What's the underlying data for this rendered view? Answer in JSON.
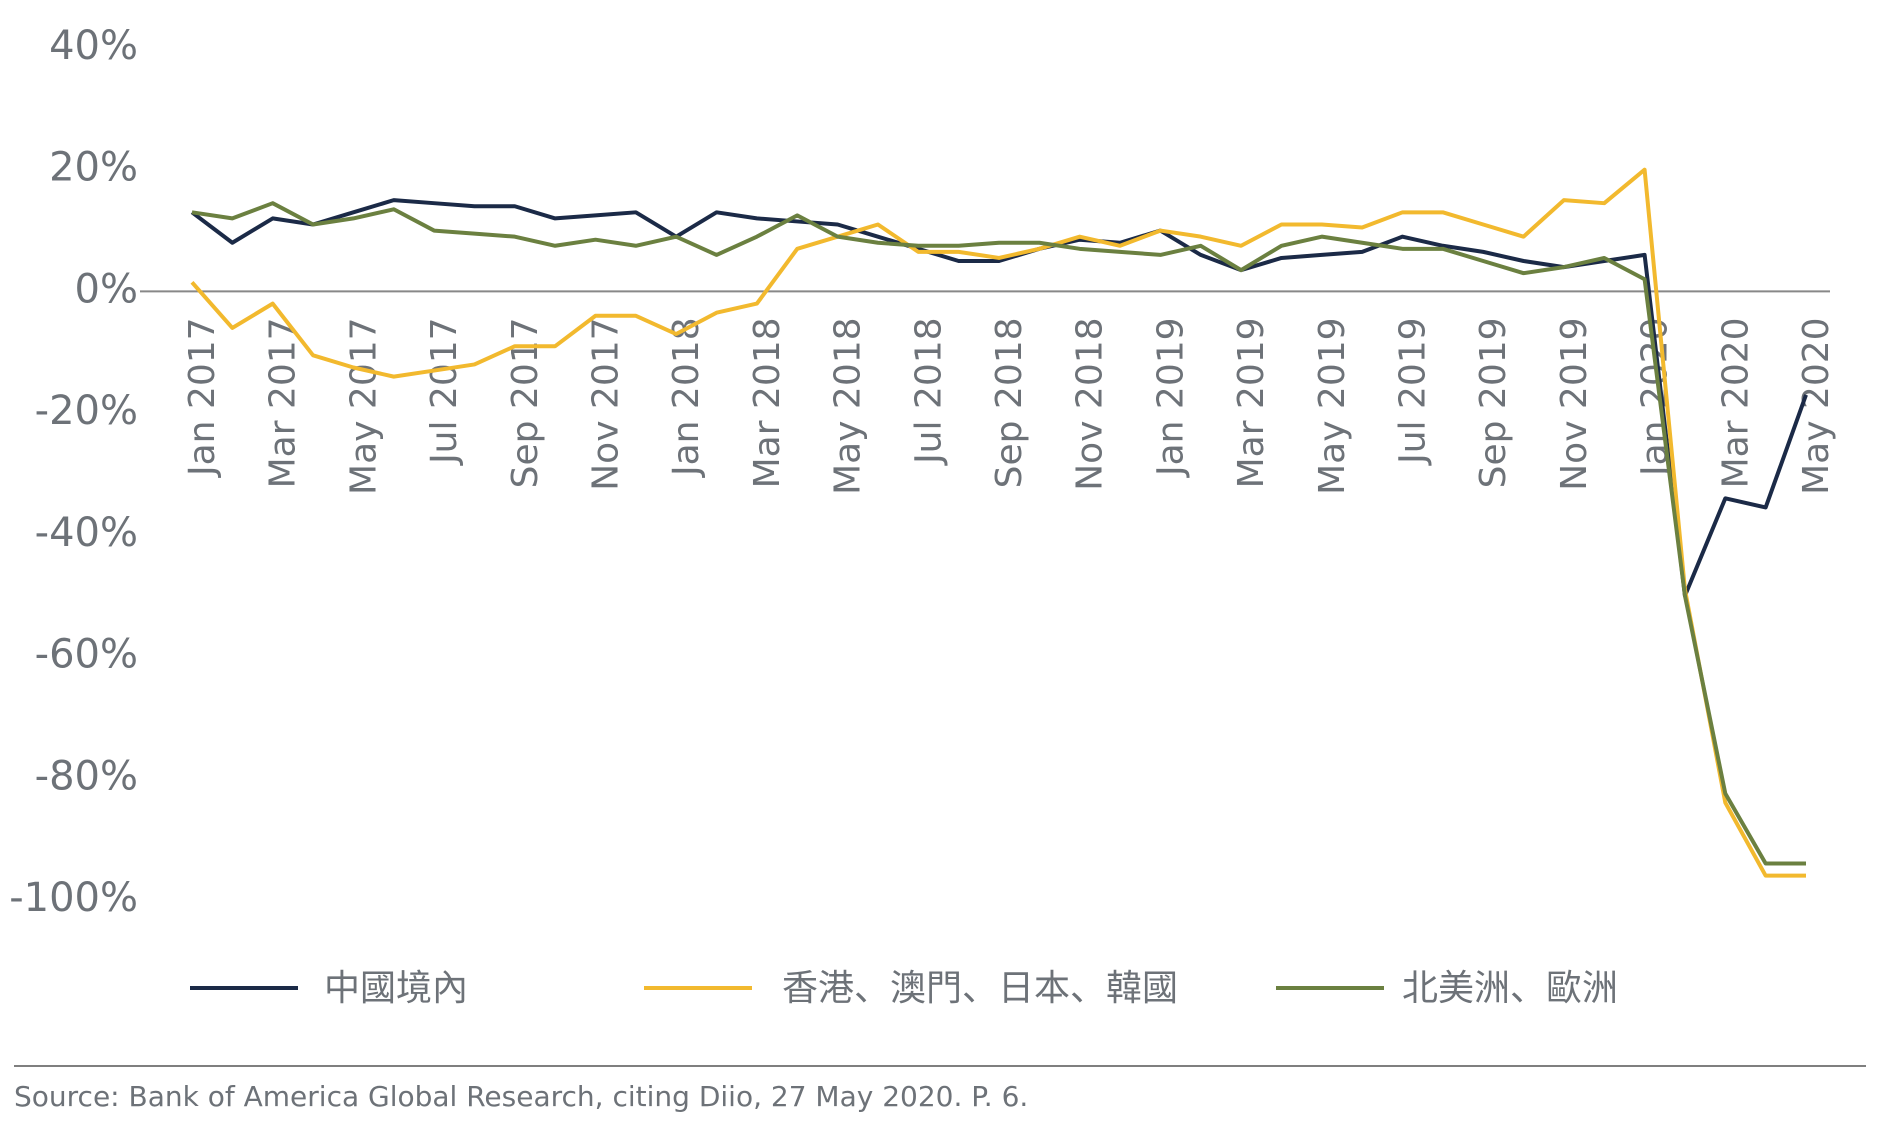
{
  "chart_data": {
    "type": "line",
    "categories": [
      "Jan 2017",
      null,
      "Mar 2017",
      null,
      "May 2017",
      null,
      "Jul 2017",
      null,
      "Sep 2017",
      null,
      "Nov 2017",
      null,
      "Jan 2018",
      null,
      "Mar 2018",
      null,
      "May 2018",
      null,
      "Jul 2018",
      null,
      "Sep 2018",
      null,
      "Nov 2018",
      null,
      "Jan 2019",
      null,
      "Mar 2019",
      null,
      "May 2019",
      null,
      "Jul 2019",
      null,
      "Sep 2019",
      null,
      "Nov 2019",
      null,
      "Jan 2020",
      null,
      "Mar 2020",
      null,
      "May 2020"
    ],
    "series": [
      {
        "name": "中國境內",
        "color": "#1b2a47",
        "values": [
          13,
          8,
          12,
          11,
          13,
          15,
          14.5,
          14,
          14,
          12,
          12.5,
          13,
          9,
          13,
          12,
          11.5,
          11,
          9,
          7,
          5,
          5,
          7,
          8.5,
          8,
          10,
          6,
          3.5,
          5.5,
          6,
          6.5,
          9,
          7.5,
          6.5,
          5,
          4,
          5,
          6,
          -50,
          -34,
          -35.5,
          -17
        ]
      },
      {
        "name": "香港、澳門、日本、韓國",
        "color": "#f2b92e",
        "values": [
          1.5,
          -6,
          -2,
          -10.5,
          -12.5,
          -14,
          -13,
          -12,
          -9,
          -9,
          -4,
          -4,
          -7,
          -3.5,
          -2,
          7,
          9,
          11,
          6.5,
          6.5,
          5.5,
          7,
          9,
          7.5,
          10,
          9,
          7.5,
          11,
          11,
          10.5,
          13,
          13,
          11,
          9,
          15,
          14.5,
          20,
          -49,
          -84,
          -96,
          -96
        ]
      },
      {
        "name": "北美洲、歐洲",
        "color": "#6b8040",
        "values": [
          13,
          12,
          14.5,
          11,
          12,
          13.5,
          10,
          9.5,
          9,
          7.5,
          8.5,
          7.5,
          9,
          6,
          9,
          12.5,
          9,
          8,
          7.5,
          7.5,
          8,
          8,
          7,
          6.5,
          6,
          7.5,
          3.5,
          7.5,
          9,
          8,
          7,
          7,
          5,
          3,
          4,
          5.5,
          2,
          -50,
          -82.5,
          -94,
          -94
        ]
      }
    ],
    "ylim": [
      -100,
      40
    ],
    "yticks": [
      {
        "value": 40,
        "label": "40%"
      },
      {
        "value": 20,
        "label": "20%"
      },
      {
        "value": 0,
        "label": "0%"
      },
      {
        "value": -20,
        "label": "-20%"
      },
      {
        "value": -40,
        "label": "-40%"
      },
      {
        "value": -60,
        "label": "-60%"
      },
      {
        "value": -80,
        "label": "-80%"
      },
      {
        "value": -100,
        "label": "-100%"
      }
    ],
    "source": "Source: Bank of America Global Research, citing Diio, 27 May 2020. P. 6."
  }
}
